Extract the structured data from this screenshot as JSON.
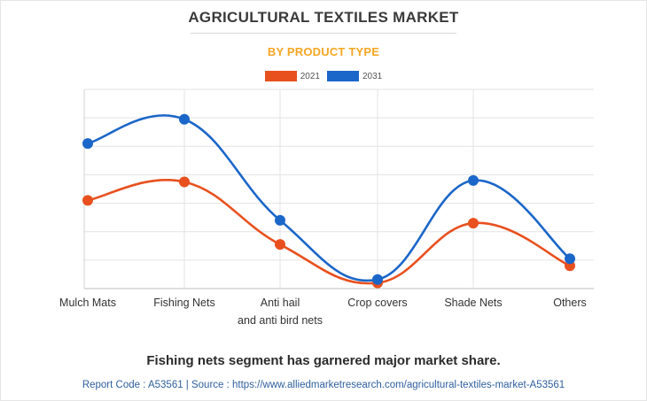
{
  "chart_data": {
    "type": "line",
    "title": "AGRICULTURAL TEXTILES MARKET",
    "subtitle": "BY PRODUCT TYPE",
    "categories": [
      "Mulch Mats",
      "Fishing Nets",
      "Anti hail and anti bird nets",
      "Crop covers",
      "Shade Nets",
      "Others"
    ],
    "category_lines": [
      [
        "Mulch Mats"
      ],
      [
        "Fishing Nets"
      ],
      [
        "Anti hail",
        "and anti bird nets"
      ],
      [
        "Crop covers"
      ],
      [
        "Shade Nets"
      ],
      [
        "Others"
      ]
    ],
    "series": [
      {
        "name": "2021",
        "color": "#e8501e",
        "values": [
          3.1,
          3.75,
          1.55,
          0.2,
          2.3,
          0.8
        ]
      },
      {
        "name": "2031",
        "color": "#1b66c9",
        "values": [
          5.1,
          5.95,
          2.4,
          0.32,
          3.8,
          1.05
        ]
      }
    ],
    "ylim": [
      0,
      7
    ],
    "grid": true,
    "legend_position": "top-center",
    "y_tick_labels_shown": false
  },
  "footer": {
    "note": "Fishing nets segment has garnered major market share.",
    "source": "Report Code : A53561  |  Source : https://www.alliedmarketresearch.com/agricultural-textiles-market-A53561"
  }
}
